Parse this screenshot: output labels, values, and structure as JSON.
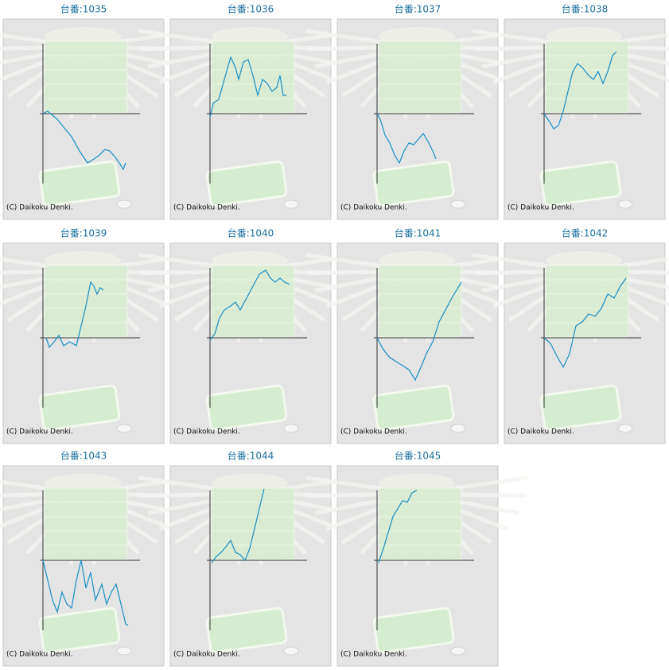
{
  "chart_data": [
    {
      "type": "line",
      "title": "台番:1035",
      "credit": "(C) Daikoku Denki.",
      "color": "#1a8fc4",
      "xlim": [
        0,
        122
      ],
      "ylim": [
        -88,
        88
      ],
      "x": [
        0,
        6,
        12,
        18,
        26,
        36,
        46,
        56,
        64,
        71,
        78,
        84,
        91,
        96,
        101,
        104
      ],
      "values": [
        0,
        3,
        -2,
        -7,
        -17,
        -29,
        -47,
        -62,
        -57,
        -52,
        -45,
        -47,
        -55,
        -62,
        -70,
        -62
      ]
    },
    {
      "type": "line",
      "title": "台番:1036",
      "credit": "(C) Daikoku Denki.",
      "color": "#1a8fc4",
      "xlim": [
        0,
        122
      ],
      "ylim": [
        -88,
        88
      ],
      "x": [
        0,
        4,
        11,
        18,
        26,
        32,
        36,
        42,
        48,
        54,
        60,
        66,
        72,
        78,
        84,
        88,
        92,
        96
      ],
      "values": [
        -5,
        13,
        18,
        43,
        71,
        58,
        43,
        65,
        68,
        48,
        23,
        43,
        38,
        28,
        33,
        48,
        23,
        23
      ]
    },
    {
      "type": "line",
      "title": "台番:1037",
      "credit": "(C) Daikoku Denki.",
      "color": "#1a8fc4",
      "xlim": [
        0,
        122
      ],
      "ylim": [
        -88,
        88
      ],
      "x": [
        0,
        4,
        10,
        16,
        22,
        28,
        34,
        40,
        46,
        52,
        58,
        64,
        70,
        74
      ],
      "values": [
        0,
        -7,
        -27,
        -37,
        -52,
        -62,
        -47,
        -37,
        -39,
        -32,
        -25,
        -35,
        -47,
        -57
      ]
    },
    {
      "type": "line",
      "title": "台番:1038",
      "credit": "(C) Daikoku Denki.",
      "color": "#1a8fc4",
      "xlim": [
        0,
        122
      ],
      "ylim": [
        -88,
        88
      ],
      "x": [
        0,
        6,
        12,
        18,
        24,
        30,
        36,
        42,
        48,
        56,
        62,
        68,
        74,
        80,
        86,
        91
      ],
      "values": [
        0,
        -9,
        -19,
        -15,
        3,
        28,
        53,
        63,
        58,
        48,
        43,
        53,
        38,
        53,
        73,
        78
      ]
    },
    {
      "type": "line",
      "title": "台番:1039",
      "credit": "(C) Daikoku Denki.",
      "color": "#1a8fc4",
      "xlim": [
        0,
        122
      ],
      "ylim": [
        -88,
        88
      ],
      "x": [
        4,
        8,
        14,
        20,
        26,
        34,
        42,
        48,
        54,
        60,
        64,
        68,
        72,
        76
      ],
      "values": [
        0,
        -12,
        -5,
        3,
        -10,
        -5,
        -10,
        15,
        40,
        70,
        65,
        55,
        63,
        60
      ]
    },
    {
      "type": "line",
      "title": "台番:1040",
      "credit": "(C) Daikoku Denki.",
      "color": "#1a8fc4",
      "xlim": [
        0,
        122
      ],
      "ylim": [
        -88,
        88
      ],
      "x": [
        0,
        6,
        12,
        18,
        26,
        32,
        38,
        46,
        54,
        62,
        70,
        76,
        82,
        88,
        94,
        100
      ],
      "values": [
        -3,
        5,
        25,
        35,
        40,
        45,
        35,
        50,
        65,
        80,
        85,
        75,
        70,
        75,
        70,
        67
      ]
    },
    {
      "type": "line",
      "title": "台番:1041",
      "credit": "(C) Daikoku Denki.",
      "color": "#1a8fc4",
      "xlim": [
        0,
        122
      ],
      "ylim": [
        -88,
        88
      ],
      "x": [
        0,
        8,
        16,
        24,
        32,
        40,
        48,
        56,
        62,
        70,
        78,
        86,
        94,
        100,
        106
      ],
      "values": [
        0,
        -15,
        -25,
        -30,
        -35,
        -40,
        -53,
        -35,
        -20,
        -5,
        20,
        35,
        50,
        60,
        70
      ]
    },
    {
      "type": "line",
      "title": "台番:1042",
      "credit": "(C) Daikoku Denki.",
      "color": "#1a8fc4",
      "xlim": [
        0,
        122
      ],
      "ylim": [
        -88,
        88
      ],
      "x": [
        0,
        8,
        16,
        24,
        32,
        40,
        48,
        56,
        64,
        72,
        80,
        88,
        96,
        103
      ],
      "values": [
        0,
        -7,
        -23,
        -37,
        -20,
        15,
        20,
        30,
        27,
        37,
        55,
        50,
        65,
        75
      ]
    },
    {
      "type": "line",
      "title": "台番:1043",
      "credit": "(C) Daikoku Denki.",
      "color": "#1a8fc4",
      "xlim": [
        0,
        122
      ],
      "ylim": [
        -88,
        88
      ],
      "x": [
        0,
        6,
        12,
        18,
        24,
        30,
        36,
        42,
        48,
        54,
        60,
        66,
        74,
        80,
        86,
        92,
        98,
        104,
        107
      ],
      "values": [
        0,
        -25,
        -50,
        -65,
        -40,
        -55,
        -60,
        -25,
        0,
        -35,
        -15,
        -50,
        -30,
        -55,
        -40,
        -30,
        -55,
        -80,
        -82
      ]
    },
    {
      "type": "line",
      "title": "台番:1044",
      "credit": "(C) Daikoku Denki.",
      "color": "#1a8fc4",
      "xlim": [
        0,
        122
      ],
      "ylim": [
        -88,
        88
      ],
      "x": [
        2,
        8,
        14,
        20,
        26,
        32,
        38,
        44,
        50,
        56,
        62,
        68
      ],
      "values": [
        -3,
        5,
        10,
        17,
        25,
        10,
        7,
        0,
        15,
        40,
        65,
        90
      ]
    },
    {
      "type": "line",
      "title": "台番:1045",
      "credit": "(C) Daikoku Denki.",
      "color": "#1a8fc4",
      "xlim": [
        0,
        122
      ],
      "ylim": [
        -88,
        88
      ],
      "x": [
        2,
        8,
        14,
        20,
        26,
        32,
        38,
        44,
        50
      ],
      "values": [
        -3,
        15,
        35,
        55,
        65,
        75,
        73,
        85,
        88
      ]
    }
  ]
}
